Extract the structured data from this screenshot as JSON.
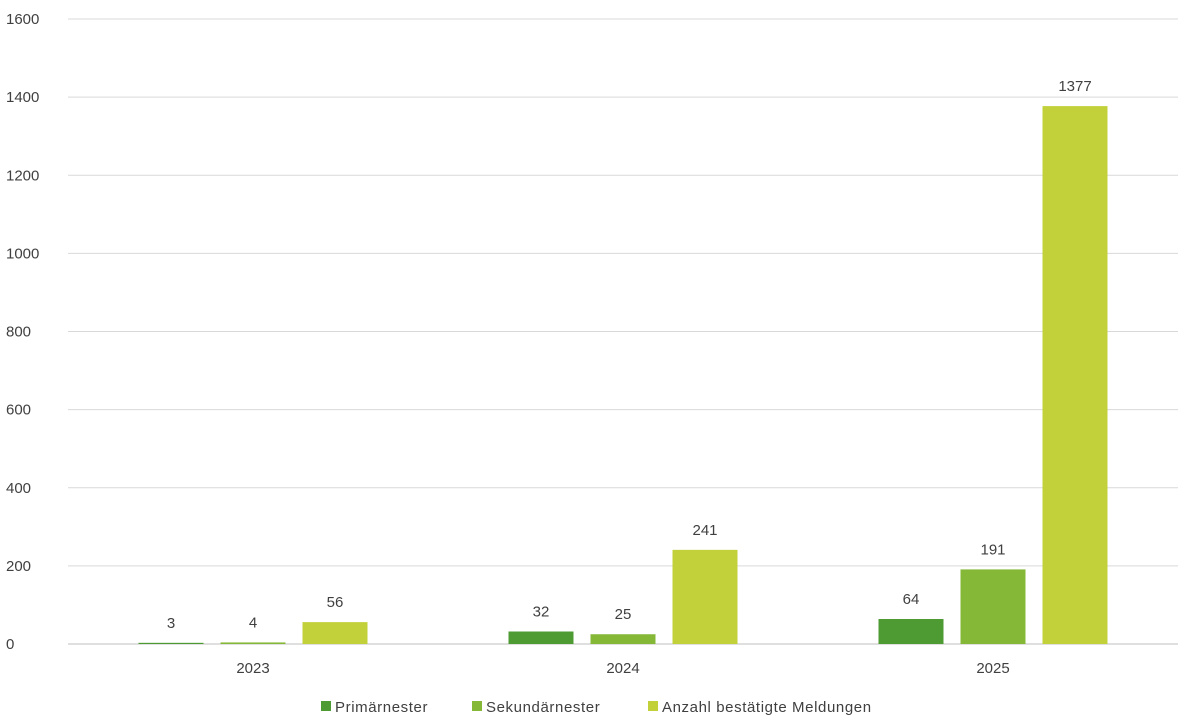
{
  "chart_data": {
    "type": "bar",
    "categories": [
      "2023",
      "2024",
      "2025"
    ],
    "series": [
      {
        "name": "Primärnester",
        "values": [
          3,
          32,
          64
        ],
        "color": "#4e9a33"
      },
      {
        "name": "Sekundärnester",
        "values": [
          4,
          25,
          191
        ],
        "color": "#86b837"
      },
      {
        "name": "Anzahl bestätigte Meldungen",
        "values": [
          56,
          241,
          1377
        ],
        "color": "#c2d13a"
      }
    ],
    "ylim": [
      0,
      1600
    ],
    "yticks": [
      0,
      200,
      400,
      600,
      800,
      1000,
      1200,
      1400,
      1600
    ],
    "grid": true,
    "legend_position": "bottom",
    "data_labels": true
  }
}
